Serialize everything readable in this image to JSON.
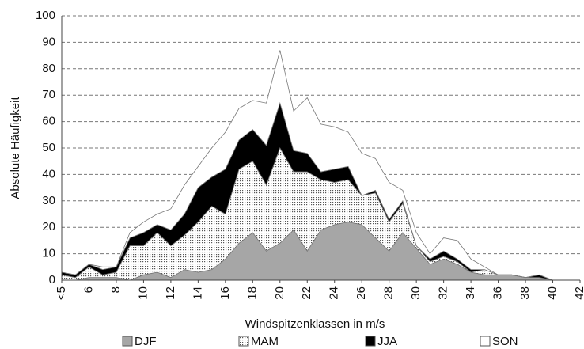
{
  "chart_data": {
    "type": "stacked_area",
    "x_label": "Windspitzenklassen in m/s",
    "y_label": "Absolute Häufigkeit",
    "categories": [
      "<5",
      null,
      "6",
      null,
      "8",
      null,
      "10",
      null,
      "12",
      null,
      "14",
      null,
      "16",
      null,
      "18",
      null,
      "20",
      null,
      "22",
      null,
      "24",
      null,
      "26",
      null,
      "28",
      null,
      "30",
      null,
      "32",
      null,
      "34",
      null,
      "36",
      null,
      "38",
      null,
      "40",
      null,
      "42"
    ],
    "series": [
      {
        "name": "DJF",
        "color": "#a6a6a6",
        "values": [
          0,
          0,
          1,
          1,
          1,
          0,
          2,
          3,
          1,
          4,
          3,
          4,
          8,
          14,
          18,
          11,
          14,
          19,
          11,
          19,
          21,
          22,
          21,
          16,
          11,
          18,
          12,
          6,
          8,
          6,
          3,
          2,
          2,
          2,
          1,
          1,
          0,
          0,
          0
        ]
      },
      {
        "name": "MAM",
        "color": "#d0d0d0",
        "pattern": "dots",
        "values": [
          2,
          1,
          4,
          1,
          2,
          13,
          11,
          15,
          12,
          13,
          19,
          24,
          17,
          28,
          27,
          25,
          36,
          22,
          30,
          19,
          16,
          16,
          11,
          17,
          11,
          11,
          1,
          1,
          1,
          1,
          0,
          2,
          0,
          0,
          0,
          0,
          0,
          0,
          0
        ]
      },
      {
        "name": "JJA",
        "color": "#000000",
        "values": [
          1,
          1,
          1,
          2,
          2,
          3,
          5,
          3,
          6,
          8,
          13,
          11,
          17,
          11,
          12,
          15,
          17,
          8,
          7,
          3,
          5,
          5,
          0,
          1,
          1,
          1,
          0,
          1,
          2,
          1,
          1,
          0,
          0,
          0,
          0,
          1,
          0,
          0,
          0
        ]
      },
      {
        "name": "SON",
        "color": "#ffffff",
        "values": [
          0,
          0,
          0,
          1,
          0,
          2,
          4,
          4,
          8,
          11,
          8,
          11,
          14,
          12,
          11,
          16,
          20,
          15,
          21,
          18,
          16,
          13,
          16,
          12,
          14,
          4,
          5,
          2,
          5,
          7,
          4,
          1,
          0,
          0,
          0,
          0,
          0,
          0,
          0
        ]
      }
    ],
    "ylim": [
      0,
      100
    ],
    "yticks": [
      0,
      10,
      20,
      30,
      40,
      50,
      60,
      70,
      80,
      90,
      100
    ],
    "grid": true,
    "legend": "bottom"
  }
}
